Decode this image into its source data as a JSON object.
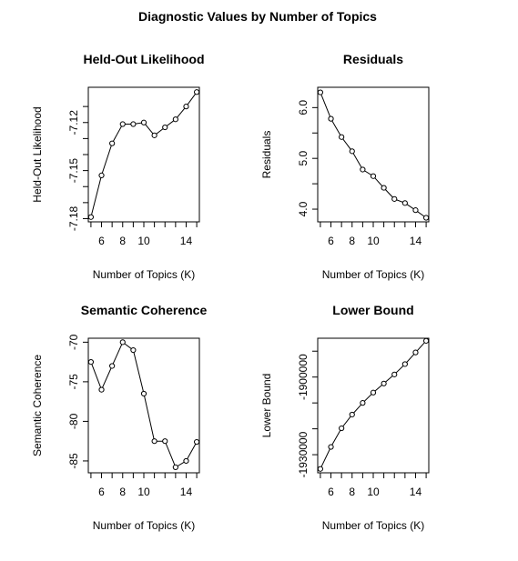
{
  "figure": {
    "title": "Diagnostic Values by Number of Topics"
  },
  "chart_data": [
    {
      "type": "line",
      "title": "Held-Out Likelihood",
      "xlabel": "Number of Topics (K)",
      "ylabel": "Held-Out Likelihood",
      "x": [
        5,
        6,
        7,
        8,
        9,
        10,
        11,
        12,
        13,
        14,
        15
      ],
      "values": [
        -7.179,
        -7.153,
        -7.133,
        -7.121,
        -7.121,
        -7.12,
        -7.128,
        -7.123,
        -7.118,
        -7.11,
        -7.101
      ],
      "xlim": [
        4.75,
        15.25
      ],
      "ylim": [
        -7.182,
        -7.098
      ],
      "xticks": [
        6,
        8,
        10,
        14
      ],
      "yticks": [
        -7.18,
        -7.15,
        -7.12
      ],
      "yticks_minor": [
        -7.17,
        -7.16,
        -7.14,
        -7.13,
        -7.11
      ],
      "grid": false,
      "legend": "none"
    },
    {
      "type": "line",
      "title": "Residuals",
      "xlabel": "Number of Topics (K)",
      "ylabel": "Residuals",
      "x": [
        5,
        6,
        7,
        8,
        9,
        10,
        11,
        12,
        13,
        14,
        15
      ],
      "values": [
        6.3,
        5.78,
        5.42,
        5.14,
        4.78,
        4.65,
        4.42,
        4.2,
        4.12,
        3.98,
        3.83
      ],
      "xlim": [
        4.75,
        15.25
      ],
      "ylim": [
        3.75,
        6.4
      ],
      "xticks": [
        6,
        8,
        10,
        14
      ],
      "yticks": [
        4.0,
        5.0,
        6.0
      ],
      "yticks_labels": [
        "4.0",
        "5.0",
        "6.0"
      ],
      "yticks_minor": [
        4.5,
        5.5
      ],
      "grid": false,
      "legend": "none"
    },
    {
      "type": "line",
      "title": "Semantic Coherence",
      "xlabel": "Number of Topics (K)",
      "ylabel": "Semantic Coherence",
      "x": [
        5,
        6,
        7,
        8,
        9,
        10,
        11,
        12,
        13,
        14,
        15
      ],
      "values": [
        -72.5,
        -76.0,
        -73.0,
        -70.0,
        -71.0,
        -76.5,
        -82.5,
        -82.5,
        -85.8,
        -85.0,
        -82.6
      ],
      "xlim": [
        4.75,
        15.25
      ],
      "ylim": [
        -86.5,
        -69.5
      ],
      "xticks": [
        6,
        8,
        10,
        14
      ],
      "yticks": [
        -85,
        -80,
        -75,
        -70
      ],
      "grid": false,
      "legend": "none"
    },
    {
      "type": "line",
      "title": "Lower Bound",
      "xlabel": "Number of Topics (K)",
      "ylabel": "Lower Bound",
      "x": [
        5,
        6,
        7,
        8,
        9,
        10,
        11,
        12,
        13,
        14,
        15
      ],
      "values": [
        -1935500,
        -1927000,
        -1919800,
        -1914500,
        -1910000,
        -1906000,
        -1902500,
        -1899000,
        -1895000,
        -1890500,
        -1886000
      ],
      "xlim": [
        4.75,
        15.25
      ],
      "ylim": [
        -1937000,
        -1885000
      ],
      "xticks": [
        6,
        8,
        10,
        14
      ],
      "yticks": [
        -1930000,
        -1900000
      ],
      "yticks_labels": [
        "-1930000",
        "-1900000"
      ],
      "yticks_minor": [
        -1920000,
        -1910000,
        -1890000
      ],
      "grid": false,
      "legend": "none"
    }
  ]
}
